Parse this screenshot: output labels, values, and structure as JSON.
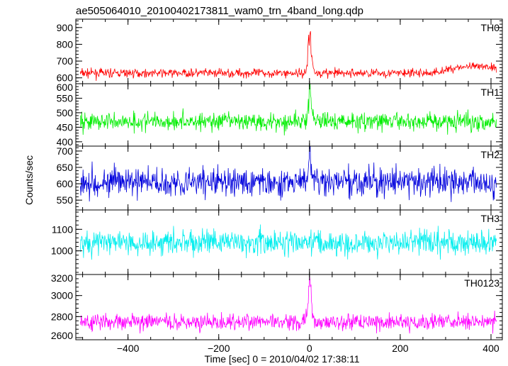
{
  "chart_data": {
    "type": "line",
    "title": "ae505064010_20100402173811_wam0_trn_4band_long.qdp",
    "xlabel": "Time [sec] 0 = 2010/04/02 17:38:11",
    "ylabel": "Counts/sec",
    "xlim": [
      -515,
      425
    ],
    "x_ticks": [
      -400,
      -200,
      0,
      200,
      400
    ],
    "x_tick_labels": [
      "−400",
      "−200",
      "0",
      "200",
      "400"
    ],
    "grid": false,
    "legend": "none",
    "x_range_data": [
      -505,
      412
    ],
    "burst_time": 0,
    "panels": [
      {
        "name": "TH0",
        "color": "#ff0000",
        "ylim": [
          565,
          950
        ],
        "y_ticks": [
          600,
          700,
          800,
          900
        ],
        "baseline": 628,
        "noise": 18,
        "burst_peak": 940,
        "quiet_segments": [
          {
            "start": 330,
            "end": 412,
            "level": 665
          }
        ]
      },
      {
        "name": "TH1",
        "color": "#00ee00",
        "ylim": [
          385,
          600
        ],
        "y_ticks": [
          400,
          450,
          500,
          550,
          600
        ],
        "baseline": 470,
        "noise": 22,
        "burst_peak": 600
      },
      {
        "name": "TH2",
        "color": "#0000dd",
        "ylim": [
          520,
          715
        ],
        "y_ticks": [
          550,
          600,
          650,
          700
        ],
        "baseline": 605,
        "noise": 30,
        "burst_peak": 700
      },
      {
        "name": "TH3",
        "color": "#00eeee",
        "ylim": [
          890,
          1190
        ],
        "y_ticks": [
          1000,
          1100
        ],
        "baseline": 1040,
        "noise": 42
      },
      {
        "name": "TH0123",
        "color": "#ff00ff",
        "ylim": [
          2580,
          3200
        ],
        "y_ticks": [
          2600,
          2800,
          3000,
          3200
        ],
        "baseline": 2750,
        "noise": 55,
        "burst_peak": 3200
      }
    ]
  }
}
